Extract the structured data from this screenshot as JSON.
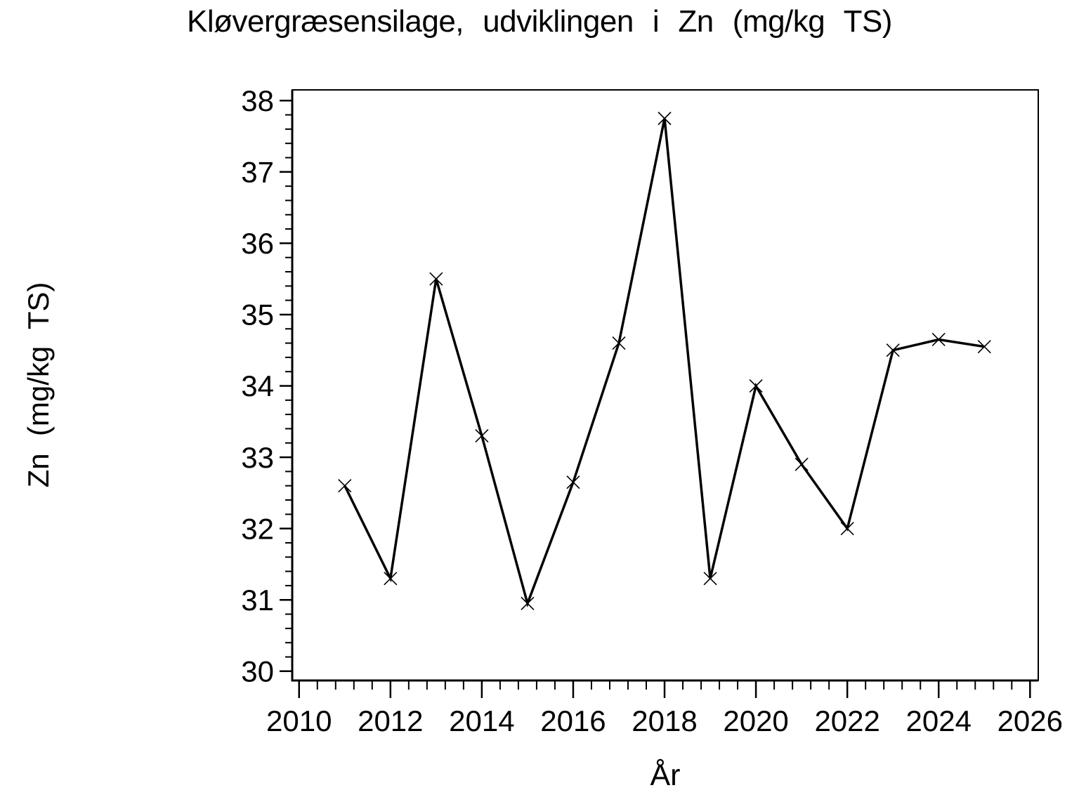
{
  "chart_data": {
    "type": "line",
    "title": "Kløvergræsensilage, udviklingen i Zn (mg/kg TS)",
    "xlabel": "År",
    "ylabel": "Zn (mg/kg TS)",
    "x": [
      2011,
      2012,
      2013,
      2014,
      2015,
      2016,
      2017,
      2018,
      2019,
      2020,
      2021,
      2022,
      2023,
      2024,
      2025
    ],
    "series": [
      {
        "name": "Zn (mg/kg TS)",
        "values": [
          32.6,
          31.3,
          35.5,
          33.3,
          30.95,
          32.65,
          34.6,
          37.75,
          31.3,
          34.0,
          32.9,
          32.0,
          34.5,
          34.65,
          34.55
        ]
      }
    ],
    "x_ticks": [
      2010,
      2012,
      2014,
      2016,
      2018,
      2020,
      2022,
      2024,
      2026
    ],
    "y_ticks": [
      30,
      31,
      32,
      33,
      34,
      35,
      36,
      37,
      38
    ],
    "x_minor_per_interval": 4,
    "y_minor_per_interval": 4,
    "xlim": [
      2009.85,
      2026.18
    ],
    "ylim": [
      29.87,
      38.15
    ],
    "marker": "x",
    "line_color": "#000000",
    "marker_color": "#000000",
    "background_color": "#ffffff",
    "grid": false,
    "legend_position": "none"
  }
}
